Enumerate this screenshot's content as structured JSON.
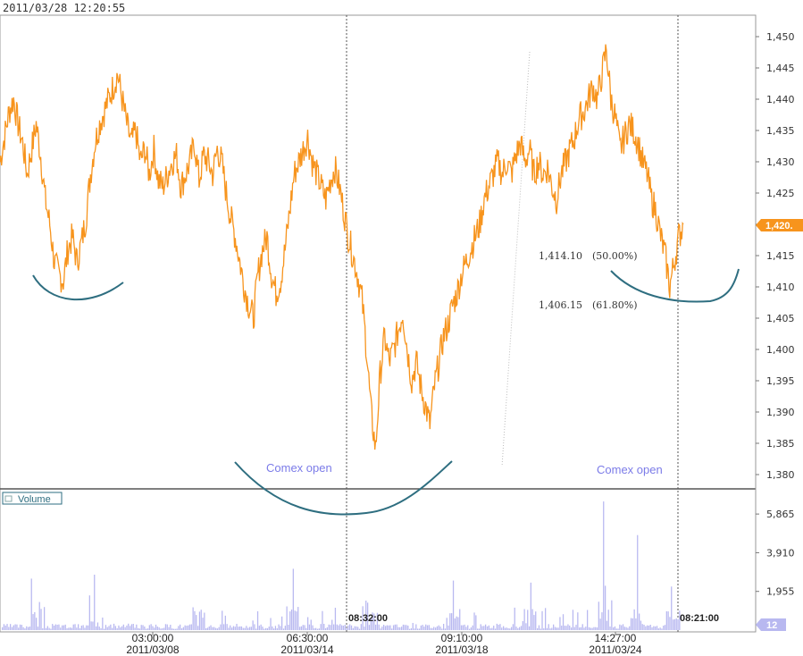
{
  "header": {
    "timestamp": "2011/03/28 12:20:55"
  },
  "volume_panel": {
    "label": "Volume",
    "current_value": "12"
  },
  "colors": {
    "price_line": "#f7941d",
    "volume_bars": "#b8b8f0",
    "annotation_curve": "#2e6e80",
    "annotation_text": "#7b7be8",
    "price_badge": "#f7941d",
    "volume_badge": "#b8b8f0",
    "axis_text": "#333333",
    "frame": "#999999"
  },
  "chart_data": [
    {
      "type": "line",
      "panel": "price",
      "current_price_label": "1,420.",
      "y_ticks": [
        "1,450",
        "1,445",
        "1,440",
        "1,435",
        "1,430",
        "1,425",
        "1,420",
        "1,415",
        "1,410",
        "1,405",
        "1,400",
        "1,395",
        "1,390",
        "1,385",
        "1,380"
      ],
      "ylim": [
        1378,
        1453
      ],
      "grid": false,
      "series": [
        {
          "values": [
            1430,
            1434,
            1438,
            1440,
            1436,
            1433,
            1428,
            1432,
            1436,
            1431,
            1424,
            1420,
            1414,
            1412,
            1411,
            1416,
            1418,
            1414,
            1417,
            1421,
            1428,
            1433,
            1436,
            1438,
            1440,
            1442,
            1444,
            1440,
            1436,
            1433,
            1435,
            1430,
            1432,
            1428,
            1432,
            1427,
            1426,
            1428,
            1430,
            1431,
            1426,
            1428,
            1430,
            1433,
            1427,
            1431,
            1430,
            1428,
            1432,
            1430,
            1425,
            1421,
            1418,
            1414,
            1410,
            1407,
            1405,
            1412,
            1416,
            1418,
            1412,
            1409,
            1411,
            1416,
            1422,
            1428,
            1430,
            1432,
            1434,
            1430,
            1428,
            1426,
            1424,
            1427,
            1429,
            1426,
            1422,
            1418,
            1415,
            1412,
            1408,
            1400,
            1390,
            1384,
            1396,
            1402,
            1398,
            1400,
            1403,
            1406,
            1400,
            1395,
            1398,
            1394,
            1391,
            1388,
            1394,
            1398,
            1402,
            1404,
            1407,
            1409,
            1412,
            1414,
            1416,
            1418,
            1420,
            1424,
            1426,
            1428,
            1430,
            1428,
            1430,
            1428,
            1431,
            1433,
            1430,
            1432,
            1428,
            1430,
            1428,
            1429,
            1426,
            1424,
            1428,
            1430,
            1432,
            1434,
            1437,
            1438,
            1440,
            1442,
            1440,
            1444,
            1448,
            1440,
            1437,
            1432,
            1434,
            1436,
            1435,
            1433,
            1430,
            1428,
            1424,
            1422,
            1418,
            1415,
            1410,
            1414,
            1418,
            1420
          ]
        }
      ],
      "fibonacci_levels": [
        {
          "value": "1,414.10",
          "label": "(50.00%)"
        },
        {
          "value": "1,406.15",
          "label": "(61.80%)"
        }
      ],
      "annotations": [
        "Comex open",
        "Comex open"
      ],
      "markers": [
        "08:32:00",
        "08:21:00"
      ]
    },
    {
      "type": "bar",
      "panel": "volume",
      "y_ticks": [
        "5,865",
        "3,910",
        "1,955"
      ],
      "ylim": [
        0,
        7000
      ],
      "x_tick_labels": [
        {
          "time": "03:00:00",
          "date": "2011/03/08"
        },
        {
          "time": "06:30:00",
          "date": "2011/03/14"
        },
        {
          "time": "09:10:00",
          "date": "2011/03/18"
        },
        {
          "time": "14:27:00",
          "date": "2011/03/24"
        }
      ],
      "spikes": [
        {
          "x_index": 7,
          "value": 2600
        },
        {
          "x_index": 21,
          "value": 2800
        },
        {
          "x_index": 44,
          "value": 3600
        },
        {
          "x_index": 65,
          "value": 3100
        },
        {
          "x_index": 82,
          "value": 3700
        },
        {
          "x_index": 101,
          "value": 2500
        },
        {
          "x_index": 118,
          "value": 2400
        },
        {
          "x_index": 135,
          "value": 6500
        },
        {
          "x_index": 142,
          "value": 4800
        },
        {
          "x_index": 150,
          "value": 2200
        }
      ]
    }
  ]
}
